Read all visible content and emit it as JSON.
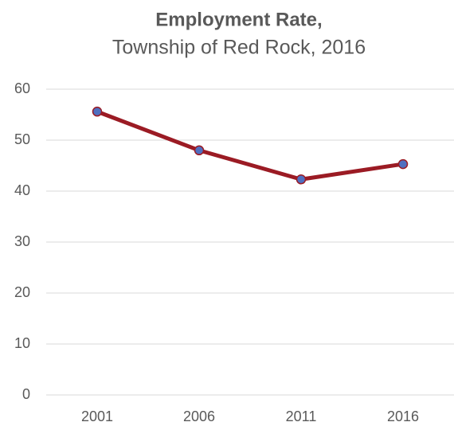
{
  "chart_data": {
    "type": "line",
    "title": "Employment Rate,",
    "subtitle": "Township of Red Rock, 2016",
    "categories": [
      "2001",
      "2006",
      "2011",
      "2016"
    ],
    "series": [
      {
        "name": "Employment Rate",
        "color": "#9b1b24",
        "marker_color": "#4f6fc0",
        "values": [
          55.6,
          48.0,
          42.3,
          45.3
        ]
      }
    ],
    "ylim": [
      0,
      60
    ],
    "yticks": [
      0,
      10,
      20,
      30,
      40,
      50,
      60
    ],
    "grid": true
  }
}
